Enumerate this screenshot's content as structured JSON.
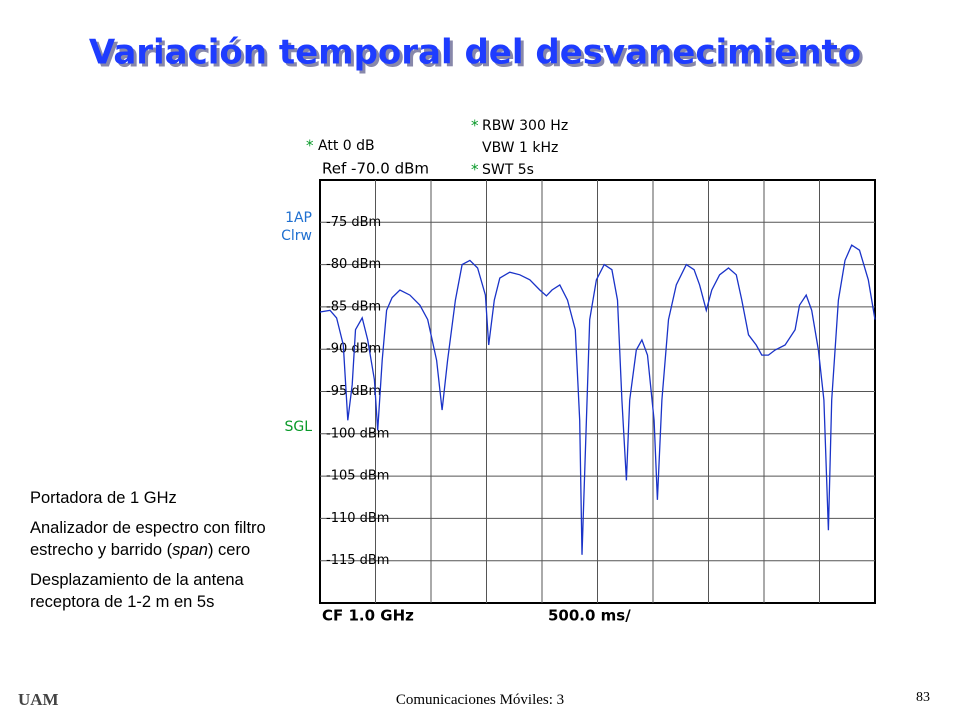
{
  "chart_data": {
    "type": "line",
    "title": "Variación temporal del desvanecimiento",
    "header": {
      "star": "*",
      "att": "Att   0 dB",
      "ref": "Ref  -70.0 dBm",
      "rbw": "RBW 300 Hz",
      "vbw": "VBW 1 kHz",
      "swt": "SWT 5s"
    },
    "side_labels": [
      "1AP",
      "Clrw",
      "SGL"
    ],
    "footer_labels": [
      "CF 1.0 GHz",
      "500.0 ms/"
    ],
    "color": "#1a33c8",
    "xlim": [
      0,
      5000
    ],
    "ylim": [
      -120,
      -70
    ],
    "yticks": [
      {
        "value": -75,
        "label": "-75 dBm"
      },
      {
        "value": -80,
        "label": "-80 dBm"
      },
      {
        "value": -85,
        "label": "-85 dBm"
      },
      {
        "value": -90,
        "label": "-90 dBm"
      },
      {
        "value": -95,
        "label": "-95 dBm"
      },
      {
        "value": -100,
        "label": "-100 dBm"
      },
      {
        "value": -105,
        "label": "-105 dBm"
      },
      {
        "value": -110,
        "label": "-110 dBm"
      },
      {
        "value": -115,
        "label": "-115 dBm"
      }
    ],
    "grid": true,
    "x": [
      0,
      90,
      150,
      210,
      250,
      290,
      320,
      380,
      430,
      490,
      520,
      560,
      600,
      650,
      720,
      810,
      900,
      970,
      1050,
      1100,
      1150,
      1220,
      1280,
      1350,
      1420,
      1490,
      1520,
      1570,
      1620,
      1710,
      1800,
      1890,
      1980,
      2040,
      2090,
      2160,
      2230,
      2300,
      2340,
      2360,
      2400,
      2430,
      2490,
      2560,
      2630,
      2680,
      2720,
      2760,
      2790,
      2850,
      2900,
      2950,
      3010,
      3040,
      3080,
      3140,
      3210,
      3300,
      3370,
      3420,
      3480,
      3530,
      3600,
      3680,
      3750,
      3800,
      3860,
      3930,
      3980,
      4040,
      4100,
      4190,
      4280,
      4320,
      4380,
      4430,
      4490,
      4540,
      4580,
      4610,
      4670,
      4730,
      4790,
      4860,
      4940,
      5000
    ],
    "values": [
      -85.6,
      -85.4,
      -86.3,
      -89.5,
      -98.4,
      -94.2,
      -87.7,
      -86.3,
      -88.9,
      -93.6,
      -99.6,
      -91.3,
      -85.4,
      -83.9,
      -83,
      -83.6,
      -84.8,
      -86.5,
      -91.3,
      -97.2,
      -91.3,
      -84.2,
      -80,
      -79.5,
      -80.4,
      -83.6,
      -89.5,
      -84.2,
      -81.6,
      -80.9,
      -81.2,
      -81.8,
      -83,
      -83.7,
      -83,
      -82.4,
      -84.2,
      -87.7,
      -98.4,
      -114.3,
      -98.4,
      -86.5,
      -81.8,
      -80,
      -80.6,
      -84.2,
      -96,
      -105.5,
      -96,
      -90.1,
      -88.9,
      -90.7,
      -98.4,
      -107.8,
      -96,
      -86.5,
      -82.4,
      -80,
      -80.6,
      -82.4,
      -85.4,
      -83,
      -81.2,
      -80.4,
      -81.2,
      -84.2,
      -88.3,
      -89.5,
      -90.7,
      -90.7,
      -90.1,
      -89.5,
      -87.7,
      -84.8,
      -83.6,
      -85.4,
      -90.1,
      -96,
      -111.4,
      -96,
      -84.2,
      -79.5,
      -77.7,
      -78.3,
      -81.8,
      -86.5
    ]
  },
  "notes": [
    "Portadora de 1 GHz",
    [
      "Analizador de espectro con filtro estrecho y barrido (",
      "span",
      ") cero"
    ],
    "Desplazamiento de la antena receptora de 1-2 m en 5s"
  ],
  "footer": {
    "logo": "UAM",
    "text": "Comunicaciones Móviles: 3",
    "page": "83"
  }
}
